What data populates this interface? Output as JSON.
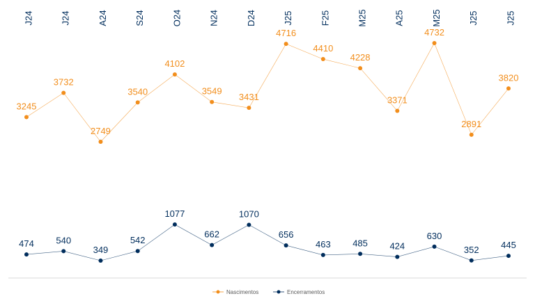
{
  "chart_data": {
    "type": "line",
    "categories": [
      "J24",
      "J24",
      "A24",
      "S24",
      "O24",
      "N24",
      "D24",
      "J25",
      "F25",
      "M25",
      "A25",
      "M25",
      "J25",
      "J25"
    ],
    "series": [
      {
        "name": "Nascimentos",
        "color": "#F28E1C",
        "values": [
          3245,
          3732,
          2749,
          3540,
          4102,
          3549,
          3431,
          4716,
          4410,
          4228,
          3371,
          4732,
          2891,
          3820
        ]
      },
      {
        "name": "Encerramentos",
        "color": "#002D5C",
        "values": [
          474,
          540,
          349,
          542,
          1077,
          662,
          1070,
          656,
          463,
          485,
          424,
          630,
          352,
          445
        ]
      }
    ],
    "title": "",
    "xlabel": "",
    "ylabel": "",
    "x_axis_position": "top",
    "grid": false,
    "legend_position": "bottom-center"
  }
}
